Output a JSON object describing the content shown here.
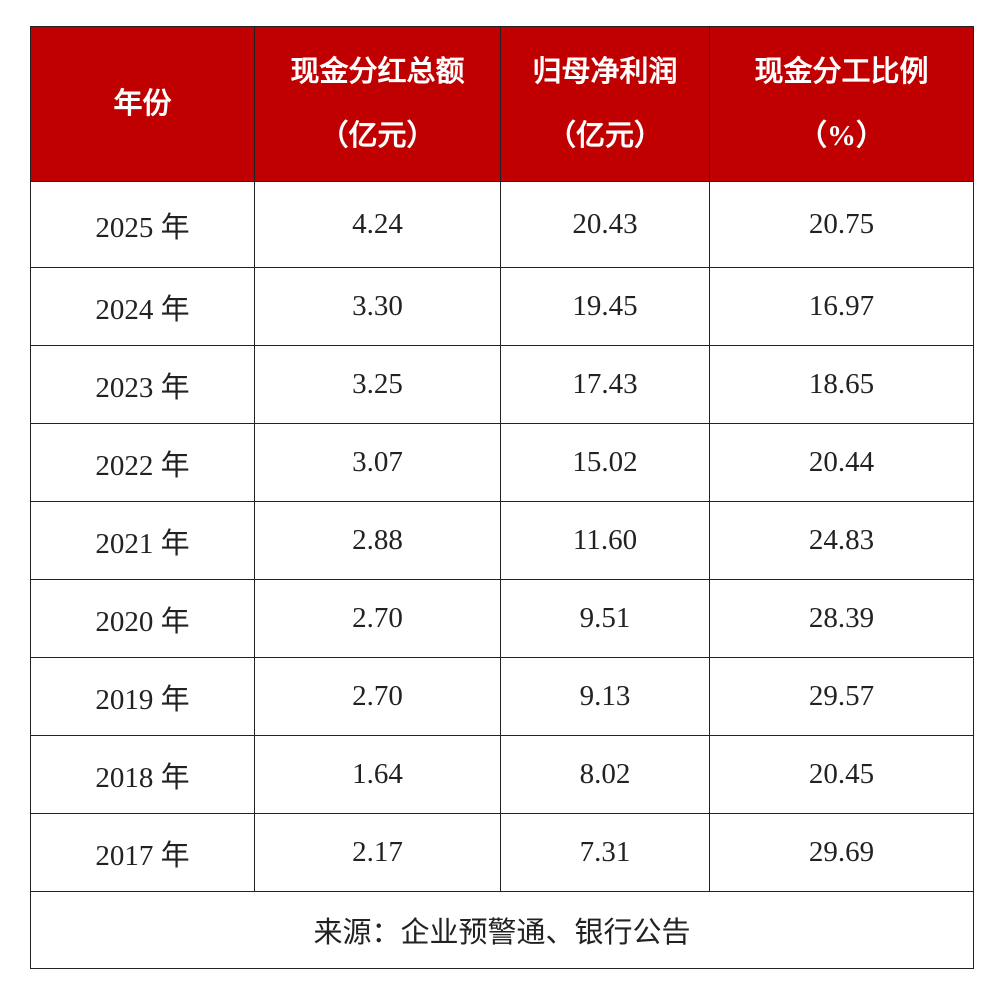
{
  "header": [
    [
      "年份"
    ],
    [
      "现金分红总额",
      "（亿元）"
    ],
    [
      "归母净利润",
      "（亿元）"
    ],
    [
      "现金分工比例",
      "（%）"
    ]
  ],
  "table": {
    "rows": [
      [
        "2025 年",
        "4.24",
        "20.43",
        "20.75"
      ],
      [
        "2024 年",
        "3.30",
        "19.45",
        "16.97"
      ],
      [
        "2023 年",
        "3.25",
        "17.43",
        "18.65"
      ],
      [
        "2022 年",
        "3.07",
        "15.02",
        "20.44"
      ],
      [
        "2021 年",
        "2.88",
        "11.60",
        "24.83"
      ],
      [
        "2020 年",
        "2.70",
        "9.51",
        "28.39"
      ],
      [
        "2019 年",
        "2.70",
        "9.13",
        "29.57"
      ],
      [
        "2018 年",
        "1.64",
        "8.02",
        "20.45"
      ],
      [
        "2017 年",
        "2.17",
        "7.31",
        "29.69"
      ]
    ]
  },
  "footer": "来源：企业预警通、银行公告"
}
